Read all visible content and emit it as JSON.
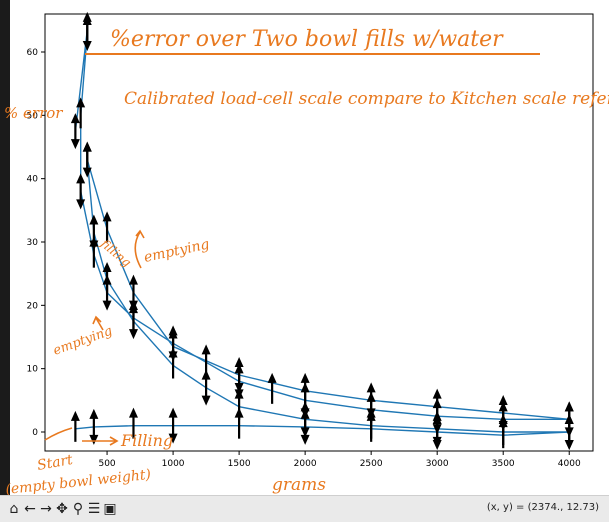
{
  "chart_data": {
    "type": "line",
    "title": "%error over Two bowl fills w/water",
    "subtitle": "Calibrated load-cell scale compare to Kitchen scale reference",
    "xlabel": "grams",
    "ylabel": "% error",
    "xlim": [
      30,
      4180
    ],
    "ylim": [
      -3,
      66
    ],
    "x_ticks": [
      500,
      1000,
      1500,
      2000,
      2500,
      3000,
      3500,
      4000
    ],
    "y_ticks": [
      0,
      10,
      20,
      30,
      40,
      50,
      60
    ],
    "grid": false,
    "line_color": "#1f77b4",
    "annotation_color": "#e8791f",
    "series": [
      {
        "values": [
          {
            "x": 260,
            "y": 47.5
          },
          {
            "x": 350,
            "y": 63.5
          },
          {
            "x": 350,
            "y": 63.0
          },
          {
            "x": 300,
            "y": 50.0
          },
          {
            "x": 300,
            "y": 38.0
          },
          {
            "x": 400,
            "y": 28.0
          },
          {
            "x": 500,
            "y": 22.0
          },
          {
            "x": 700,
            "y": 18.0
          },
          {
            "x": 1000,
            "y": 14.0
          },
          {
            "x": 1250,
            "y": 11.0
          },
          {
            "x": 1500,
            "y": 8.0
          },
          {
            "x": 1750,
            "y": 6.5
          },
          {
            "x": 2000,
            "y": 5.0
          },
          {
            "x": 2500,
            "y": 3.5
          },
          {
            "x": 3000,
            "y": 2.5
          },
          {
            "x": 3500,
            "y": 2.0
          },
          {
            "x": 4000,
            "y": 2.0
          }
        ]
      },
      {
        "values": [
          {
            "x": 4000,
            "y": 2.0
          },
          {
            "x": 3500,
            "y": 3.0
          },
          {
            "x": 3000,
            "y": 4.0
          },
          {
            "x": 2500,
            "y": 5.0
          },
          {
            "x": 2000,
            "y": 6.5
          },
          {
            "x": 1500,
            "y": 9.0
          },
          {
            "x": 1000,
            "y": 13.5
          },
          {
            "x": 700,
            "y": 22.0
          },
          {
            "x": 500,
            "y": 32.0
          },
          {
            "x": 350,
            "y": 43.0
          }
        ]
      },
      {
        "values": [
          {
            "x": 350,
            "y": 43.0
          },
          {
            "x": 400,
            "y": 31.5
          },
          {
            "x": 500,
            "y": 24.0
          },
          {
            "x": 700,
            "y": 17.5
          },
          {
            "x": 1000,
            "y": 10.5
          },
          {
            "x": 1250,
            "y": 7.0
          },
          {
            "x": 1500,
            "y": 4.0
          },
          {
            "x": 2000,
            "y": 2.0
          },
          {
            "x": 2500,
            "y": 1.0
          },
          {
            "x": 3000,
            "y": 0.5
          },
          {
            "x": 3500,
            "y": 0.0
          },
          {
            "x": 4000,
            "y": 0.0
          }
        ]
      },
      {
        "values": [
          {
            "x": 260,
            "y": 0.5
          },
          {
            "x": 400,
            "y": 0.8
          },
          {
            "x": 700,
            "y": 1.0
          },
          {
            "x": 1000,
            "y": 1.0
          },
          {
            "x": 1500,
            "y": 1.0
          },
          {
            "x": 2000,
            "y": 0.8
          },
          {
            "x": 2500,
            "y": 0.5
          },
          {
            "x": 3000,
            "y": 0.0
          },
          {
            "x": 3500,
            "y": -0.5
          },
          {
            "x": 4000,
            "y": 0.0
          }
        ]
      }
    ],
    "handwritten_annotations": [
      "filling",
      "emptying",
      "emptying",
      "Filling",
      "Start",
      "(empty bowl weight)"
    ]
  },
  "toolbar": {
    "buttons": [
      {
        "name": "home-icon",
        "glyph": "⌂"
      },
      {
        "name": "back-icon",
        "glyph": "←"
      },
      {
        "name": "forward-icon",
        "glyph": "→"
      },
      {
        "name": "pan-icon",
        "glyph": "✥"
      },
      {
        "name": "zoom-icon",
        "glyph": "⚲"
      },
      {
        "name": "configure-subplots-icon",
        "glyph": "☰"
      },
      {
        "name": "save-icon",
        "glyph": "▣"
      }
    ],
    "coordinates": "(x, y) = (2374., 12.73)"
  }
}
